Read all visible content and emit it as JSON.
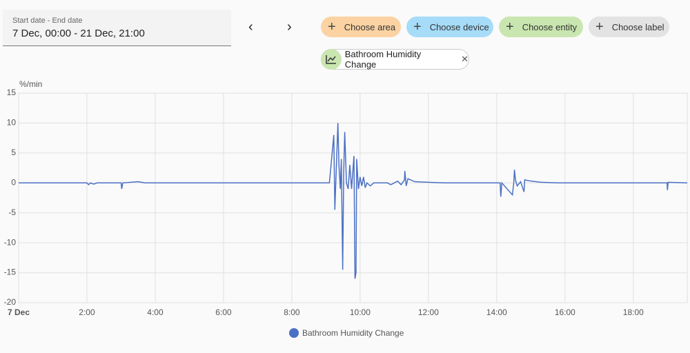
{
  "date_picker": {
    "label": "Start date - End date",
    "value": "7 Dec, 00:00 - 21 Dec, 21:00"
  },
  "target_buttons": [
    "Choose area",
    "Choose device",
    "Choose entity",
    "Choose label"
  ],
  "selected_entity": "Bathroom Humidity Change",
  "chart_data": {
    "type": "line",
    "y_label": "%/min",
    "x": [
      0,
      2.0,
      2.05,
      2.1,
      2.2,
      2.3,
      3.0,
      3.02,
      3.05,
      3.5,
      3.7,
      9.1,
      9.23,
      9.26,
      9.3,
      9.35,
      9.38,
      9.42,
      9.45,
      9.49,
      9.52,
      9.55,
      9.6,
      9.65,
      9.7,
      9.75,
      9.82,
      9.85,
      9.88,
      9.9,
      9.95,
      10.0,
      10.05,
      10.1,
      10.15,
      10.2,
      10.3,
      10.4,
      10.8,
      10.9,
      11.0,
      11.1,
      11.2,
      11.3,
      11.31,
      11.35,
      11.4,
      11.6,
      12.0,
      12.5,
      14.1,
      14.12,
      14.15,
      14.46,
      14.5,
      14.52,
      14.55,
      14.6,
      14.7,
      14.8,
      14.82,
      15.0,
      15.3,
      15.8,
      18.99,
      19.0,
      19.02,
      19.58
    ],
    "series": [
      {
        "name": "Bathroom Humidity Change",
        "color": "#4a6fc4",
        "values": [
          0,
          0,
          -0.3,
          0,
          -0.2,
          0,
          0,
          -1,
          0,
          0.2,
          0,
          0,
          8,
          -4.5,
          2,
          10,
          3,
          -1,
          4,
          -14.5,
          2,
          8.5,
          0,
          -1,
          3,
          -1,
          4.5,
          -16,
          -15,
          4,
          -1,
          1,
          -0.5,
          1,
          -0.8,
          0,
          -0.5,
          0,
          0,
          -0.3,
          0,
          0.3,
          -0.3,
          0.5,
          2,
          -0.5,
          0.7,
          0.2,
          0.1,
          0,
          0,
          -2.3,
          0,
          -2,
          0,
          2.2,
          0.5,
          -0.5,
          0.2,
          -1.5,
          0.5,
          0.3,
          0.1,
          0,
          0,
          -1.2,
          0.1,
          0
        ]
      }
    ],
    "xlim": [
      0,
      19.58
    ],
    "xticks": [
      {
        "value": 0,
        "label": "7 Dec"
      },
      {
        "value": 2,
        "label": "2:00"
      },
      {
        "value": 4,
        "label": "4:00"
      },
      {
        "value": 6,
        "label": "6:00"
      },
      {
        "value": 8,
        "label": "8:00"
      },
      {
        "value": 10,
        "label": "10:00"
      },
      {
        "value": 12,
        "label": "12:00"
      },
      {
        "value": 14,
        "label": "14:00"
      },
      {
        "value": 16,
        "label": "16:00"
      },
      {
        "value": 18,
        "label": "18:00"
      }
    ],
    "ylim": [
      -20,
      15
    ],
    "yticks": [
      -20,
      -15,
      -10,
      -5,
      0,
      5,
      10,
      15
    ],
    "grid": true
  }
}
